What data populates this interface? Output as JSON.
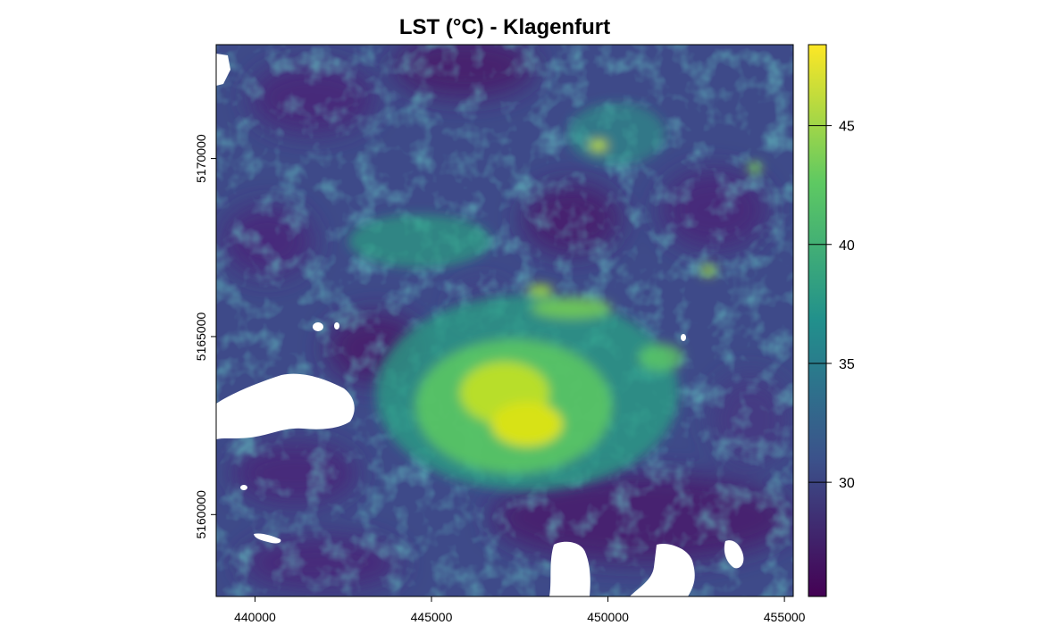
{
  "chart_data": {
    "type": "heatmap",
    "title": "LST (°C) - Klagenfurt",
    "xlabel": "",
    "ylabel": "",
    "xlim": [
      438900,
      455250
    ],
    "ylim": [
      5157700,
      5173200
    ],
    "x_ticks": [
      440000,
      445000,
      450000,
      455000
    ],
    "x_tick_labels": [
      "440000",
      "445000",
      "450000",
      "455000"
    ],
    "y_ticks": [
      5160000,
      5165000,
      5170000
    ],
    "y_tick_labels": [
      "5160000",
      "5165000",
      "5170000"
    ],
    "colorbar": {
      "palette": "viridis",
      "colors": [
        "#440154",
        "#3b528b",
        "#21908c",
        "#5ec962",
        "#fde725"
      ],
      "range": [
        25.2,
        48.4
      ],
      "ticks": [
        30,
        35,
        40,
        45
      ],
      "tick_labels": [
        "30",
        "35",
        "40",
        "45"
      ]
    },
    "grid": false,
    "legend_position": "right",
    "hotspot": {
      "x": 447500,
      "y": 5163000,
      "value": 48
    }
  }
}
